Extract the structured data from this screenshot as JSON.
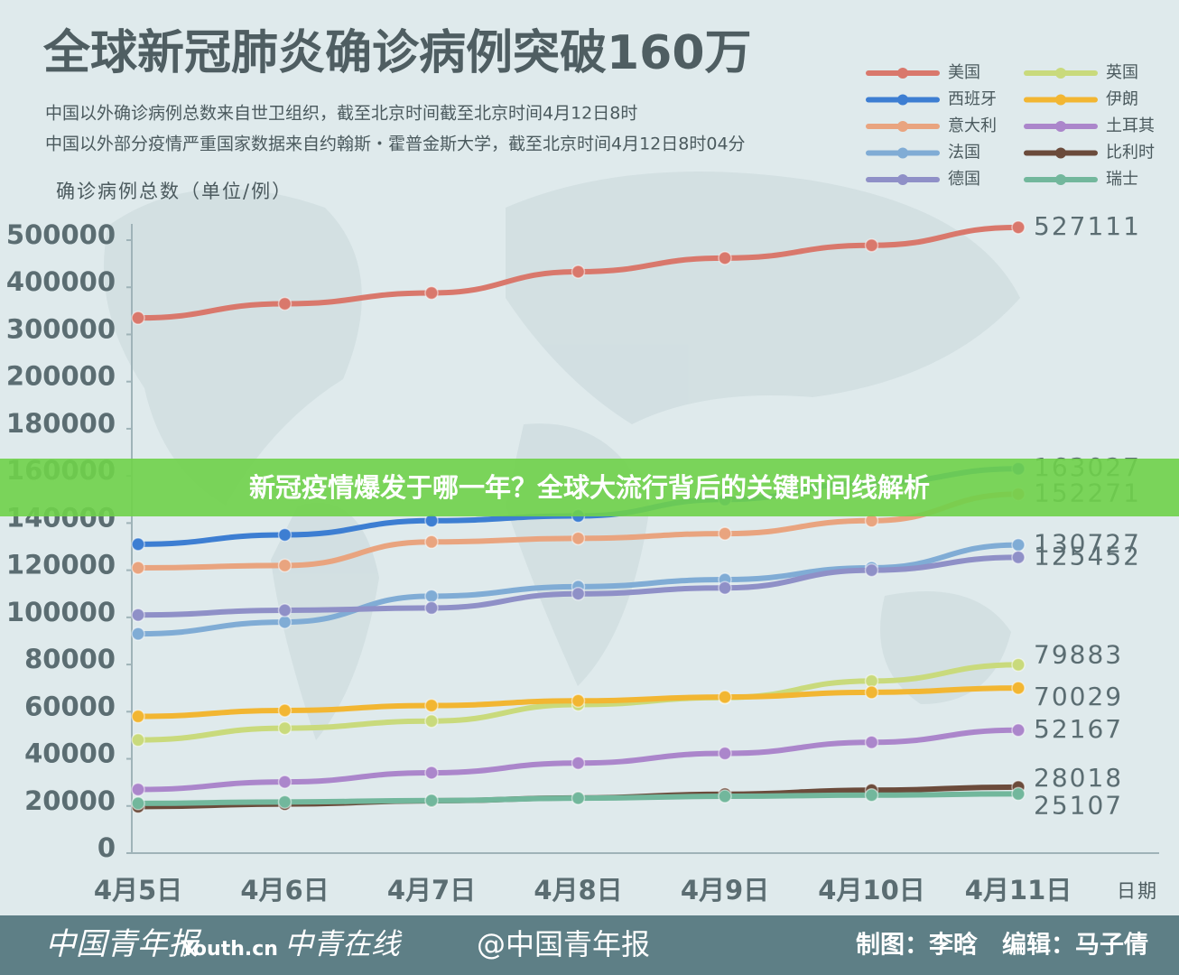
{
  "chart_data": {
    "type": "line",
    "title": "全球新冠肺炎确诊病例突破160万",
    "subtitle": [
      "中国以外确诊病例总数来自世卫组织，截至北京时间截至北京时间4月12日8时",
      "中国以外部分疫情严重国家数据来自约翰斯・霍普金斯大学，截至北京时间4月12日8时04分"
    ],
    "y_label": "确诊病例总数（单位/例）",
    "x_label": "日期",
    "categories": [
      "4月5日",
      "4月6日",
      "4月7日",
      "4月8日",
      "4月9日",
      "4月10日",
      "4月11日"
    ],
    "yticks": [
      0,
      20000,
      40000,
      60000,
      80000,
      100000,
      120000,
      140000,
      160000,
      180000,
      200000,
      300000,
      400000,
      500000
    ],
    "ylim": [
      0,
      527111
    ],
    "series": [
      {
        "name": "美国",
        "color": "#d9786c",
        "values": [
          335000,
          365000,
          388000,
          433000,
          462000,
          489000,
          527111
        ]
      },
      {
        "name": "西班牙",
        "color": "#3d7ed2",
        "values": [
          131000,
          135000,
          141000,
          143000,
          150000,
          157000,
          163027
        ]
      },
      {
        "name": "意大利",
        "color": "#e9a47f",
        "values": [
          121000,
          122000,
          132000,
          133500,
          135500,
          141000,
          152271
        ]
      },
      {
        "name": "法国",
        "color": "#80acd5",
        "values": [
          93000,
          98000,
          109000,
          113000,
          116000,
          121000,
          130727
        ]
      },
      {
        "name": "德国",
        "color": "#8f90c7",
        "values": [
          101000,
          103000,
          104000,
          110000,
          112500,
          120000,
          125452
        ]
      },
      {
        "name": "英国",
        "color": "#c9da7c",
        "values": [
          48000,
          53000,
          56000,
          63000,
          66000,
          73000,
          79883
        ]
      },
      {
        "name": "伊朗",
        "color": "#f2b632",
        "values": [
          58000,
          60500,
          62600,
          64600,
          66200,
          68200,
          70029
        ]
      },
      {
        "name": "土耳其",
        "color": "#ab86cb",
        "values": [
          27000,
          30200,
          34100,
          38200,
          42300,
          47000,
          52167
        ]
      },
      {
        "name": "比利时",
        "color": "#6b4b3b",
        "values": [
          19700,
          20800,
          22200,
          23400,
          25000,
          26700,
          28018
        ]
      },
      {
        "name": "瑞士",
        "color": "#72b79c",
        "values": [
          21100,
          21700,
          22300,
          23300,
          24100,
          24600,
          25107
        ]
      }
    ]
  },
  "banner": "新冠疫情爆发于哪一年？全球大流行背后的关键时间线解析",
  "footer": {
    "logos": [
      "中国青年报",
      "Youth.cn",
      "中青在线"
    ],
    "weibo": "@中国青年报",
    "credits": "制图：李晗　编辑：马子倩"
  }
}
